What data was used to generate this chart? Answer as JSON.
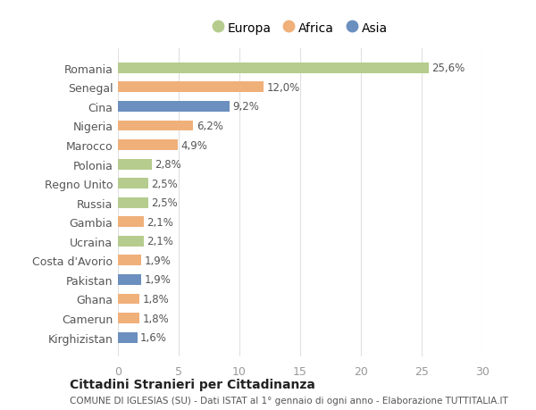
{
  "countries": [
    "Romania",
    "Senegal",
    "Cina",
    "Nigeria",
    "Marocco",
    "Polonia",
    "Regno Unito",
    "Russia",
    "Gambia",
    "Ucraina",
    "Costa d'Avorio",
    "Pakistan",
    "Ghana",
    "Camerun",
    "Kirghizistan"
  ],
  "values": [
    25.6,
    12.0,
    9.2,
    6.2,
    4.9,
    2.8,
    2.5,
    2.5,
    2.1,
    2.1,
    1.9,
    1.9,
    1.8,
    1.8,
    1.6
  ],
  "labels": [
    "25,6%",
    "12,0%",
    "9,2%",
    "6,2%",
    "4,9%",
    "2,8%",
    "2,5%",
    "2,5%",
    "2,1%",
    "2,1%",
    "1,9%",
    "1,9%",
    "1,8%",
    "1,8%",
    "1,6%"
  ],
  "continents": [
    "Europa",
    "Africa",
    "Asia",
    "Africa",
    "Africa",
    "Europa",
    "Europa",
    "Europa",
    "Africa",
    "Europa",
    "Africa",
    "Asia",
    "Africa",
    "Africa",
    "Asia"
  ],
  "colors": {
    "Europa": "#b5cc8e",
    "Africa": "#f0b07a",
    "Asia": "#6b8fbf"
  },
  "title": "Cittadini Stranieri per Cittadinanza",
  "subtitle": "COMUNE DI IGLESIAS (SU) - Dati ISTAT al 1° gennaio di ogni anno - Elaborazione TUTTITALIA.IT",
  "xlim": [
    0,
    30
  ],
  "xticks": [
    0,
    5,
    10,
    15,
    20,
    25,
    30
  ],
  "background_color": "#ffffff",
  "bar_height": 0.55,
  "grid_color": "#e0e0e0",
  "label_fontsize": 8.5,
  "tick_fontsize": 9,
  "legend_fontsize": 10,
  "title_fontsize": 10,
  "subtitle_fontsize": 7.5,
  "ytick_color": "#555555",
  "xtick_color": "#999999",
  "label_color": "#555555",
  "title_color": "#222222",
  "subtitle_color": "#555555"
}
